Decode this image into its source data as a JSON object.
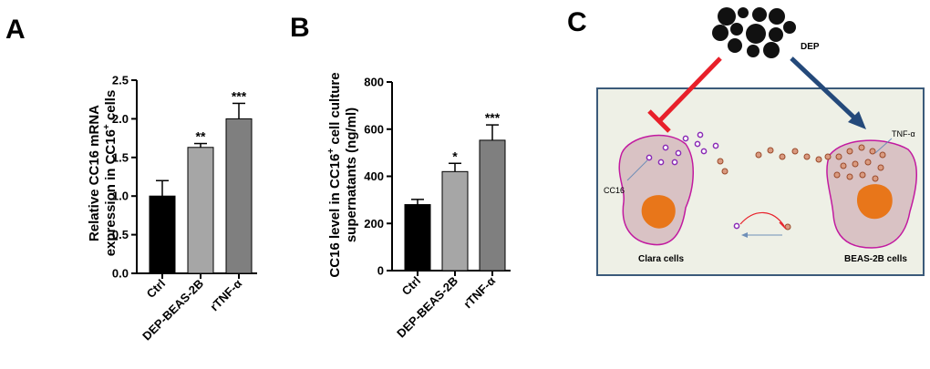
{
  "panels": {
    "a": "A",
    "b": "B",
    "c": "C"
  },
  "chart_data": [
    {
      "type": "bar",
      "panel": "A",
      "ylabel_line1": "Relative CC16 mRNA",
      "ylabel_line2_pre": "expression in CC16",
      "ylabel_line2_sup": "+",
      "ylabel_line2_post": " cells",
      "ylim": [
        0,
        2.5
      ],
      "yticks": [
        "0.0",
        "0.5",
        "1.0",
        "1.5",
        "2.0",
        "2.5"
      ],
      "ytick_values": [
        0,
        0.5,
        1.0,
        1.5,
        2.0,
        2.5
      ],
      "categories": [
        "Ctrl",
        "DEP-BEAS-2B",
        "rTNF-α"
      ],
      "values": [
        1.0,
        1.63,
        2.0
      ],
      "errors": [
        0.2,
        0.05,
        0.2
      ],
      "significance": [
        "",
        "**",
        "***"
      ],
      "colors": [
        "#000000",
        "#a6a6a6",
        "#7f7f7f"
      ]
    },
    {
      "type": "bar",
      "panel": "B",
      "ylabel_line1_pre": "CC16 level in CC16",
      "ylabel_line1_sup": "+",
      "ylabel_line1_post": " cell culture",
      "ylabel_line2": "supernatants (ng/ml)",
      "ylim": [
        0,
        800
      ],
      "yticks": [
        "0",
        "200",
        "400",
        "600",
        "800"
      ],
      "ytick_values": [
        0,
        200,
        400,
        600,
        800
      ],
      "categories": [
        "Ctrl",
        "DEP-BEAS-2B",
        "rTNF-α"
      ],
      "values": [
        280,
        420,
        553
      ],
      "errors": [
        22,
        35,
        65
      ],
      "significance": [
        "",
        "*",
        "***"
      ],
      "colors": [
        "#000000",
        "#a6a6a6",
        "#7f7f7f"
      ]
    }
  ],
  "diagram": {
    "dep_label": "DEP",
    "tnf_label": "TNF-α",
    "cc16_label": "CC16",
    "clara_label": "Clara cells",
    "beas_label": "BEAS-2B cells",
    "colors": {
      "box_fill": "#eef0e6",
      "box_border": "#3b5a7a",
      "inhibit_arrow": "#e8202a",
      "activate_arrow": "#24497a",
      "cell_fill": "#d9c2c4",
      "cell_border": "#c21aa0",
      "nucleus": "#e8761a",
      "cc16_dot": "#8a2bb5",
      "tnf_dot": "#b85c3a"
    }
  }
}
